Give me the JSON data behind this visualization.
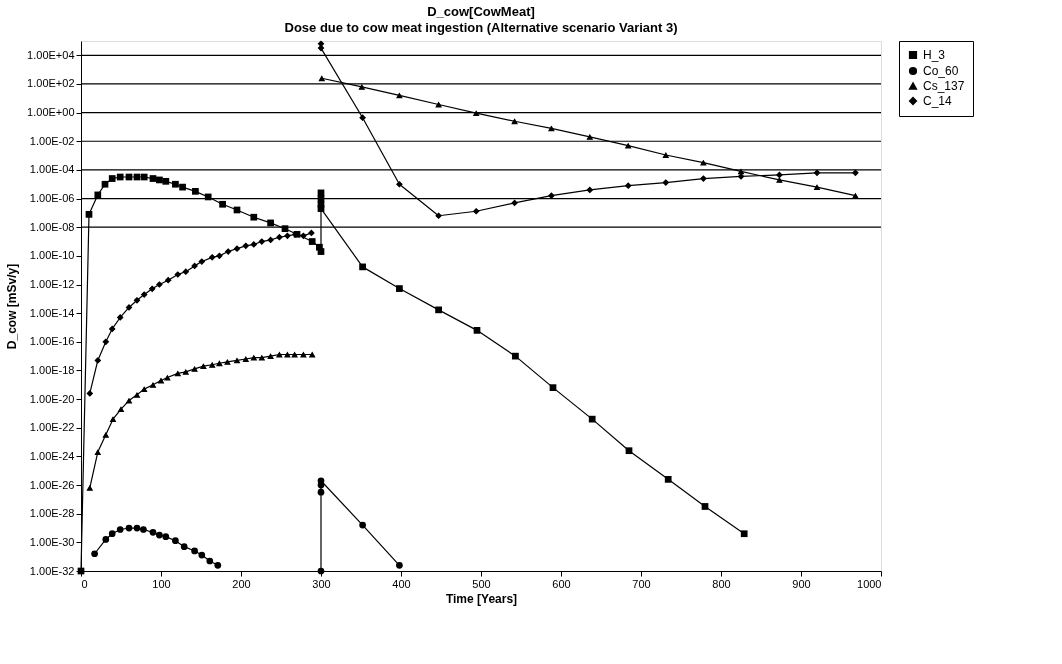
{
  "chart_data": {
    "type": "line",
    "title": "D_cow[CowMeat]",
    "subtitle": "Dose due to cow meat ingestion (Alternative scenario Variant 3)",
    "xlabel": "Time [Years]",
    "ylabel": "D_cow [mSv/y]",
    "log": true,
    "grid": false,
    "legend": "right",
    "xlim": [
      0,
      1000
    ],
    "ylim": [
      1e-32,
      100000.0
    ],
    "xticks": [
      0,
      100,
      200,
      300,
      400,
      500,
      600,
      700,
      800,
      900,
      1000
    ],
    "yticks": [
      {
        "value": 1e-32,
        "label": "1.00E-32"
      },
      {
        "value": 1e-30,
        "label": "1.00E-30"
      },
      {
        "value": 1e-28,
        "label": "1.00E-28"
      },
      {
        "value": 1e-26,
        "label": "1.00E-26"
      },
      {
        "value": 1e-24,
        "label": "1.00E-24"
      },
      {
        "value": 1e-22,
        "label": "1.00E-22"
      },
      {
        "value": 1e-20,
        "label": "1.00E-20"
      },
      {
        "value": 1e-18,
        "label": "1.00E-18"
      },
      {
        "value": 1e-16,
        "label": "1.00E-16"
      },
      {
        "value": 1e-14,
        "label": "1.00E-14"
      },
      {
        "value": 1e-12,
        "label": "1.00E-12"
      },
      {
        "value": 1e-10,
        "label": "1.00E-10"
      },
      {
        "value": 1e-08,
        "label": "1.00E-08"
      },
      {
        "value": 1e-06,
        "label": "1.00E-06"
      },
      {
        "value": 0.0001,
        "label": "1.00E-04"
      },
      {
        "value": 0.01,
        "label": "1.00E-02"
      },
      {
        "value": 1,
        "label": "1.00E+00"
      },
      {
        "value": 100,
        "label": "1.00E+02"
      },
      {
        "value": 10000,
        "label": "1.00E+04"
      }
    ],
    "ref_lines": [
      {
        "axis": "y",
        "value": 1e-08,
        "color": "#000000"
      },
      {
        "axis": "y",
        "value": 1e-06,
        "color": "#000000"
      },
      {
        "axis": "y",
        "value": 0.0001,
        "color": "#000000"
      },
      {
        "axis": "y",
        "value": 0.01,
        "color": "#000000"
      },
      {
        "axis": "y",
        "value": 1,
        "color": "#000000"
      },
      {
        "axis": "y",
        "value": 100,
        "color": "#000000"
      },
      {
        "axis": "y",
        "value": 10000,
        "color": "#000000"
      }
    ],
    "series": [
      {
        "name": "H_3",
        "color": "#000000",
        "marker": "square",
        "x": [
          0,
          10,
          21,
          30,
          39,
          49,
          60,
          70,
          79,
          90,
          98,
          106,
          118,
          127,
          143,
          159,
          177,
          195,
          216,
          237,
          255,
          270,
          289,
          298,
          300,
          300,
          300,
          300,
          300,
          352,
          398,
          447,
          495,
          543,
          590,
          639,
          685,
          734,
          780,
          829
        ],
        "values": [
          1e-32,
          7.9e-08,
          1.8e-06,
          1e-05,
          2.5e-05,
          3.2e-05,
          3.2e-05,
          3.2e-05,
          3.2e-05,
          2.5e-05,
          2e-05,
          1.6e-05,
          1e-05,
          6.3e-06,
          3.2e-06,
          1.3e-06,
          4e-07,
          1.6e-07,
          5e-08,
          2e-08,
          7.9e-09,
          3.2e-09,
          1e-09,
          4e-10,
          2e-10,
          2.5e-06,
          1e-06,
          4e-07,
          2e-07,
          1.7e-11,
          5.2e-13,
          1.7e-14,
          6.3e-16,
          1e-17,
          6.3e-20,
          4e-22,
          2.5e-24,
          2.5e-26,
          3.2e-28,
          4e-30
        ]
      },
      {
        "name": "Co_60",
        "color": "#000000",
        "marker": "circle",
        "x": [
          17,
          31,
          39,
          49,
          60,
          70,
          78,
          90,
          98,
          106,
          118,
          129,
          142,
          151,
          161,
          171,
          250,
          300,
          300,
          300,
          300,
          352,
          398
        ],
        "values": [
          1.6e-31,
          1.6e-30,
          4e-30,
          7.9e-30,
          1e-29,
          1e-29,
          7.9e-30,
          5e-30,
          3.2e-30,
          2.5e-30,
          1.3e-30,
          5e-31,
          2.5e-31,
          1.3e-31,
          5e-32,
          2.5e-32,
          null,
          1e-32,
          3.2e-27,
          1e-26,
          2e-26,
          1.6e-29,
          2.5e-32
        ]
      },
      {
        "name": "Cs_137",
        "color": "#000000",
        "marker": "triangle",
        "x": [
          11,
          21,
          31,
          40,
          50,
          60,
          70,
          79,
          90,
          100,
          108,
          121,
          131,
          142,
          153,
          164,
          173,
          183,
          195,
          206,
          216,
          226,
          237,
          248,
          258,
          267,
          278,
          289,
          295,
          301,
          351,
          398,
          447,
          494,
          542,
          588,
          636,
          684,
          731,
          778,
          825,
          873,
          920,
          968
        ],
        "values": [
          6.3e-27,
          2e-24,
          3.2e-23,
          4e-22,
          2e-21,
          7.9e-21,
          2e-20,
          5e-20,
          1e-19,
          2e-19,
          3.2e-19,
          6.3e-19,
          7.9e-19,
          1.3e-18,
          2e-18,
          2.5e-18,
          3.2e-18,
          4e-18,
          5e-18,
          6.3e-18,
          7.9e-18,
          7.9e-18,
          1e-17,
          1.3e-17,
          1.3e-17,
          1.3e-17,
          1.3e-17,
          1.3e-17,
          null,
          250,
          63,
          16,
          3.7,
          0.91,
          0.25,
          0.079,
          0.02,
          0.005,
          0.0011,
          0.00032,
          7.9e-05,
          2e-05,
          6.3e-06,
          1.6e-06
        ]
      },
      {
        "name": "C_14",
        "color": "#000000",
        "marker": "diamond",
        "x": [
          11,
          21,
          31,
          39,
          49,
          60,
          70,
          79,
          89,
          98,
          109,
          121,
          131,
          142,
          151,
          164,
          173,
          184,
          195,
          206,
          216,
          226,
          237,
          248,
          258,
          268,
          278,
          288,
          295,
          300,
          300,
          352,
          398,
          447,
          494,
          542,
          588,
          636,
          684,
          731,
          778,
          825,
          873,
          920,
          968
        ],
        "values": [
          2.5e-20,
          5e-18,
          1e-16,
          7.9e-16,
          5e-15,
          2.5e-14,
          7.9e-14,
          2e-13,
          5e-13,
          1e-12,
          2e-12,
          5e-12,
          7.9e-12,
          2e-11,
          4e-11,
          7.9e-11,
          1e-10,
          2e-10,
          3.2e-10,
          5e-10,
          6.3e-10,
          1e-09,
          1.3e-09,
          2e-09,
          2.5e-09,
          3.2e-09,
          2.5e-09,
          4e-09,
          null,
          63000.0,
          32000.0,
          0.44,
          1e-05,
          6.3e-08,
          1.3e-07,
          5e-07,
          1.6e-06,
          4e-06,
          7.9e-06,
          1.3e-05,
          2.5e-05,
          3.5e-05,
          4.5e-05,
          6.3e-05,
          6.3e-05
        ]
      }
    ]
  }
}
